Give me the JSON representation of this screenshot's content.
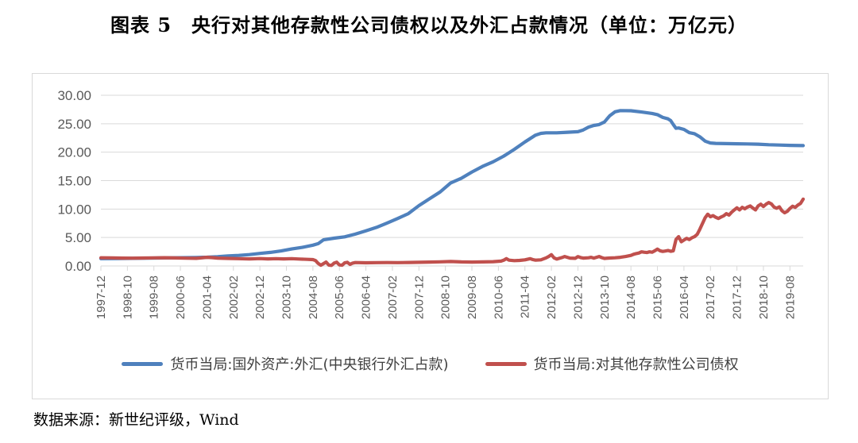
{
  "page": {
    "title": "图表 5　央行对其他存款性公司债权以及外汇占款情况（单位：万亿元）",
    "source": "数据来源：新世纪评级，Wind"
  },
  "colors": {
    "grid": "#d9d9d9",
    "axis_border": "#d9d9d9",
    "tick_label": "#595959",
    "blue_series": "#4F81BD",
    "red_series": "#C0504D"
  },
  "chart_data": {
    "type": "line",
    "title": "央行对其他存款性公司债权以及外汇占款情况",
    "unit": "万亿元",
    "x_axis": "month (first point 1997-12, one point per month offset)",
    "xlim_months": [
      0,
      265
    ],
    "x_tick_interval_months": 10,
    "x_tick_labels": [
      "1997-12",
      "1998-10",
      "1999-08",
      "2000-06",
      "2001-04",
      "2002-02",
      "2002-12",
      "2003-10",
      "2004-08",
      "2005-06",
      "2006-04",
      "2007-02",
      "2007-12",
      "2008-10",
      "2009-08",
      "2010-06",
      "2011-04",
      "2012-02",
      "2012-12",
      "2013-10",
      "2014-08",
      "2015-06",
      "2016-04",
      "2017-02",
      "2017-12",
      "2018-10",
      "2019-08"
    ],
    "ylim": [
      0,
      30
    ],
    "y_ticks": [
      0,
      5,
      10,
      15,
      20,
      25,
      30
    ],
    "y_tick_labels": [
      "0.00",
      "5.00",
      "10.00",
      "15.00",
      "20.00",
      "25.00",
      "30.00"
    ],
    "grid": "horizontal",
    "legend_position": "bottom",
    "series": [
      {
        "name": "货币当局:国外资产:外汇(中央银行外汇占款)",
        "color": "#4F81BD",
        "points": [
          [
            0,
            1.28
          ],
          [
            6,
            1.31
          ],
          [
            12,
            1.34
          ],
          [
            18,
            1.38
          ],
          [
            24,
            1.41
          ],
          [
            30,
            1.45
          ],
          [
            36,
            1.49
          ],
          [
            40,
            1.53
          ],
          [
            44,
            1.62
          ],
          [
            48,
            1.77
          ],
          [
            52,
            1.86
          ],
          [
            56,
            1.99
          ],
          [
            60,
            2.21
          ],
          [
            64,
            2.39
          ],
          [
            68,
            2.64
          ],
          [
            72,
            2.98
          ],
          [
            76,
            3.26
          ],
          [
            80,
            3.66
          ],
          [
            82,
            3.92
          ],
          [
            84,
            4.59
          ],
          [
            88,
            4.88
          ],
          [
            92,
            5.12
          ],
          [
            96,
            5.6
          ],
          [
            100,
            6.18
          ],
          [
            104,
            6.78
          ],
          [
            108,
            7.55
          ],
          [
            112,
            8.35
          ],
          [
            116,
            9.2
          ],
          [
            120,
            10.6
          ],
          [
            124,
            11.8
          ],
          [
            128,
            13.0
          ],
          [
            132,
            14.6
          ],
          [
            136,
            15.4
          ],
          [
            140,
            16.5
          ],
          [
            144,
            17.5
          ],
          [
            148,
            18.3
          ],
          [
            152,
            19.3
          ],
          [
            156,
            20.5
          ],
          [
            160,
            21.8
          ],
          [
            164,
            23.0
          ],
          [
            166,
            23.3
          ],
          [
            168,
            23.4
          ],
          [
            172,
            23.4
          ],
          [
            176,
            23.5
          ],
          [
            180,
            23.6
          ],
          [
            182,
            23.9
          ],
          [
            184,
            24.4
          ],
          [
            186,
            24.7
          ],
          [
            188,
            24.85
          ],
          [
            190,
            25.3
          ],
          [
            192,
            26.4
          ],
          [
            194,
            27.1
          ],
          [
            196,
            27.3
          ],
          [
            200,
            27.28
          ],
          [
            204,
            27.05
          ],
          [
            208,
            26.8
          ],
          [
            210,
            26.6
          ],
          [
            212,
            26.1
          ],
          [
            214,
            25.85
          ],
          [
            215,
            25.55
          ],
          [
            216,
            24.85
          ],
          [
            217,
            24.2
          ],
          [
            218,
            24.25
          ],
          [
            220,
            24.0
          ],
          [
            222,
            23.43
          ],
          [
            224,
            23.25
          ],
          [
            226,
            22.7
          ],
          [
            228,
            21.94
          ],
          [
            230,
            21.62
          ],
          [
            232,
            21.55
          ],
          [
            236,
            21.5
          ],
          [
            240,
            21.48
          ],
          [
            244,
            21.45
          ],
          [
            248,
            21.4
          ],
          [
            252,
            21.3
          ],
          [
            256,
            21.25
          ],
          [
            260,
            21.2
          ],
          [
            265,
            21.15
          ]
        ]
      },
      {
        "name": "货币当局:对其他存款性公司债权",
        "color": "#C0504D",
        "points": [
          [
            0,
            1.44
          ],
          [
            4,
            1.42
          ],
          [
            8,
            1.38
          ],
          [
            12,
            1.37
          ],
          [
            16,
            1.4
          ],
          [
            20,
            1.43
          ],
          [
            24,
            1.45
          ],
          [
            28,
            1.41
          ],
          [
            32,
            1.37
          ],
          [
            36,
            1.34
          ],
          [
            38,
            1.42
          ],
          [
            40,
            1.52
          ],
          [
            42,
            1.46
          ],
          [
            44,
            1.38
          ],
          [
            48,
            1.33
          ],
          [
            52,
            1.28
          ],
          [
            56,
            1.24
          ],
          [
            60,
            1.3
          ],
          [
            63,
            1.24
          ],
          [
            66,
            1.29
          ],
          [
            69,
            1.24
          ],
          [
            72,
            1.28
          ],
          [
            75,
            1.21
          ],
          [
            78,
            1.16
          ],
          [
            80,
            1.12
          ],
          [
            81,
            0.95
          ],
          [
            82,
            0.45
          ],
          [
            83,
            0.12
          ],
          [
            84,
            0.4
          ],
          [
            85,
            0.68
          ],
          [
            86,
            0.15
          ],
          [
            87,
            0.1
          ],
          [
            88,
            0.5
          ],
          [
            89,
            0.66
          ],
          [
            90,
            0.18
          ],
          [
            91,
            0.12
          ],
          [
            92,
            0.55
          ],
          [
            93,
            0.64
          ],
          [
            94,
            0.28
          ],
          [
            95,
            0.5
          ],
          [
            96,
            0.6
          ],
          [
            100,
            0.56
          ],
          [
            104,
            0.58
          ],
          [
            108,
            0.6
          ],
          [
            112,
            0.59
          ],
          [
            116,
            0.62
          ],
          [
            120,
            0.64
          ],
          [
            124,
            0.68
          ],
          [
            128,
            0.72
          ],
          [
            132,
            0.78
          ],
          [
            136,
            0.71
          ],
          [
            140,
            0.68
          ],
          [
            144,
            0.71
          ],
          [
            148,
            0.75
          ],
          [
            151,
            0.85
          ],
          [
            152,
            1.0
          ],
          [
            153,
            1.28
          ],
          [
            154,
            1.02
          ],
          [
            156,
            0.93
          ],
          [
            158,
            0.98
          ],
          [
            160,
            1.08
          ],
          [
            162,
            1.28
          ],
          [
            163,
            1.12
          ],
          [
            164,
            1.02
          ],
          [
            166,
            1.08
          ],
          [
            168,
            1.43
          ],
          [
            169,
            1.68
          ],
          [
            170,
            1.98
          ],
          [
            171,
            1.42
          ],
          [
            172,
            1.22
          ],
          [
            174,
            1.48
          ],
          [
            175,
            1.66
          ],
          [
            176,
            1.52
          ],
          [
            177,
            1.38
          ],
          [
            179,
            1.34
          ],
          [
            180,
            1.65
          ],
          [
            181,
            1.48
          ],
          [
            182,
            1.38
          ],
          [
            184,
            1.44
          ],
          [
            185,
            1.52
          ],
          [
            186,
            1.38
          ],
          [
            188,
            1.66
          ],
          [
            189,
            1.46
          ],
          [
            190,
            1.33
          ],
          [
            192,
            1.39
          ],
          [
            194,
            1.44
          ],
          [
            196,
            1.52
          ],
          [
            198,
            1.66
          ],
          [
            200,
            1.86
          ],
          [
            201,
            2.05
          ],
          [
            202,
            2.18
          ],
          [
            203,
            2.28
          ],
          [
            204,
            2.48
          ],
          [
            205,
            2.42
          ],
          [
            206,
            2.36
          ],
          [
            207,
            2.48
          ],
          [
            208,
            2.42
          ],
          [
            209,
            2.66
          ],
          [
            210,
            2.96
          ],
          [
            211,
            2.66
          ],
          [
            212,
            2.56
          ],
          [
            213,
            2.62
          ],
          [
            214,
            2.72
          ],
          [
            215,
            2.58
          ],
          [
            216,
            2.66
          ],
          [
            217,
            4.65
          ],
          [
            218,
            5.15
          ],
          [
            219,
            4.25
          ],
          [
            220,
            4.55
          ],
          [
            221,
            4.85
          ],
          [
            222,
            4.65
          ],
          [
            223,
            4.95
          ],
          [
            224,
            5.15
          ],
          [
            225,
            5.55
          ],
          [
            226,
            6.45
          ],
          [
            227,
            7.45
          ],
          [
            228,
            8.47
          ],
          [
            229,
            9.1
          ],
          [
            230,
            8.65
          ],
          [
            231,
            8.85
          ],
          [
            232,
            8.55
          ],
          [
            233,
            8.35
          ],
          [
            234,
            8.59
          ],
          [
            235,
            8.8
          ],
          [
            236,
            9.2
          ],
          [
            237,
            8.95
          ],
          [
            238,
            9.45
          ],
          [
            239,
            9.85
          ],
          [
            240,
            10.22
          ],
          [
            241,
            9.85
          ],
          [
            242,
            10.3
          ],
          [
            243,
            10.05
          ],
          [
            244,
            10.35
          ],
          [
            245,
            10.55
          ],
          [
            246,
            10.19
          ],
          [
            247,
            9.85
          ],
          [
            248,
            10.55
          ],
          [
            249,
            10.85
          ],
          [
            250,
            10.45
          ],
          [
            251,
            10.85
          ],
          [
            252,
            11.15
          ],
          [
            253,
            10.9
          ],
          [
            254,
            10.35
          ],
          [
            255,
            10.15
          ],
          [
            256,
            10.4
          ],
          [
            257,
            9.7
          ],
          [
            258,
            9.35
          ],
          [
            259,
            9.6
          ],
          [
            260,
            10.1
          ],
          [
            261,
            10.5
          ],
          [
            262,
            10.3
          ],
          [
            263,
            10.7
          ],
          [
            264,
            11.0
          ],
          [
            265,
            11.75
          ]
        ]
      }
    ]
  }
}
